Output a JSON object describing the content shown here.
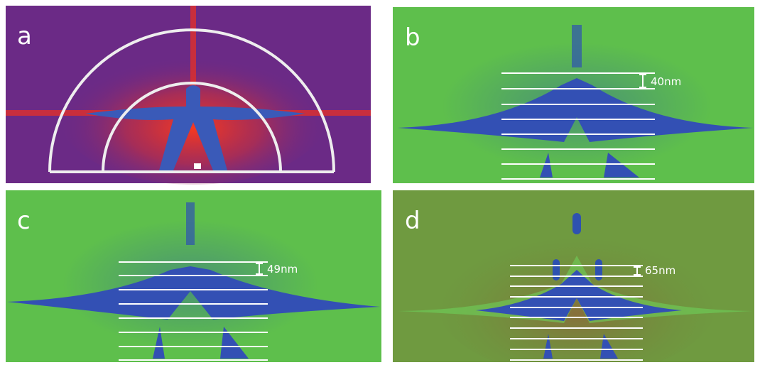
{
  "panels": [
    {
      "label": "a"
    },
    {
      "label": "b",
      "scale": "40nm"
    },
    {
      "label": "c",
      "scale": "49nm"
    },
    {
      "label": "d",
      "scale": "65nm"
    }
  ]
}
